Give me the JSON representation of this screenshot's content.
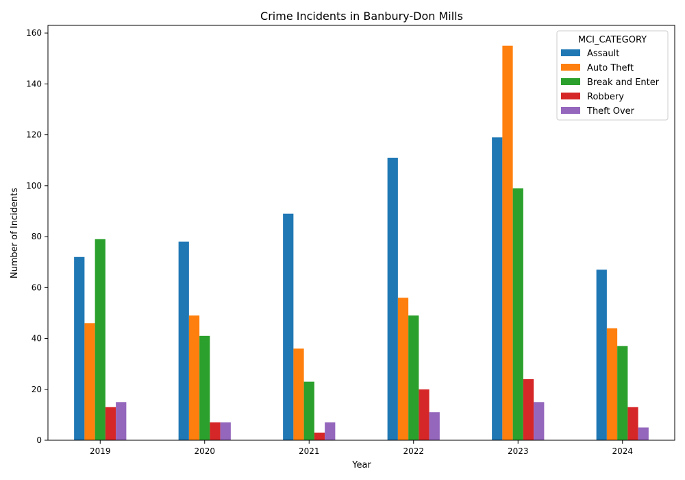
{
  "chart_data": {
    "type": "bar",
    "title": "Crime Incidents in Banbury-Don Mills",
    "xlabel": "Year",
    "ylabel": "Number of Incidents",
    "categories": [
      "2019",
      "2020",
      "2021",
      "2022",
      "2023",
      "2024"
    ],
    "ylim": [
      0,
      163
    ],
    "yticks": [
      0,
      20,
      40,
      60,
      80,
      100,
      120,
      140,
      160
    ],
    "grid": false,
    "legend": {
      "title": "MCI_CATEGORY",
      "placement": "top-right"
    },
    "series": [
      {
        "name": "Assault",
        "color": "#1f77b4",
        "values": [
          72,
          78,
          89,
          111,
          119,
          67
        ]
      },
      {
        "name": "Auto Theft",
        "color": "#ff7f0e",
        "values": [
          46,
          49,
          36,
          56,
          155,
          44
        ]
      },
      {
        "name": "Break and Enter",
        "color": "#2ca02c",
        "values": [
          79,
          41,
          23,
          49,
          99,
          37
        ]
      },
      {
        "name": "Robbery",
        "color": "#d62728",
        "values": [
          13,
          7,
          3,
          20,
          24,
          13
        ]
      },
      {
        "name": "Theft Over",
        "color": "#9467bd",
        "values": [
          15,
          7,
          7,
          11,
          15,
          5
        ]
      }
    ]
  }
}
